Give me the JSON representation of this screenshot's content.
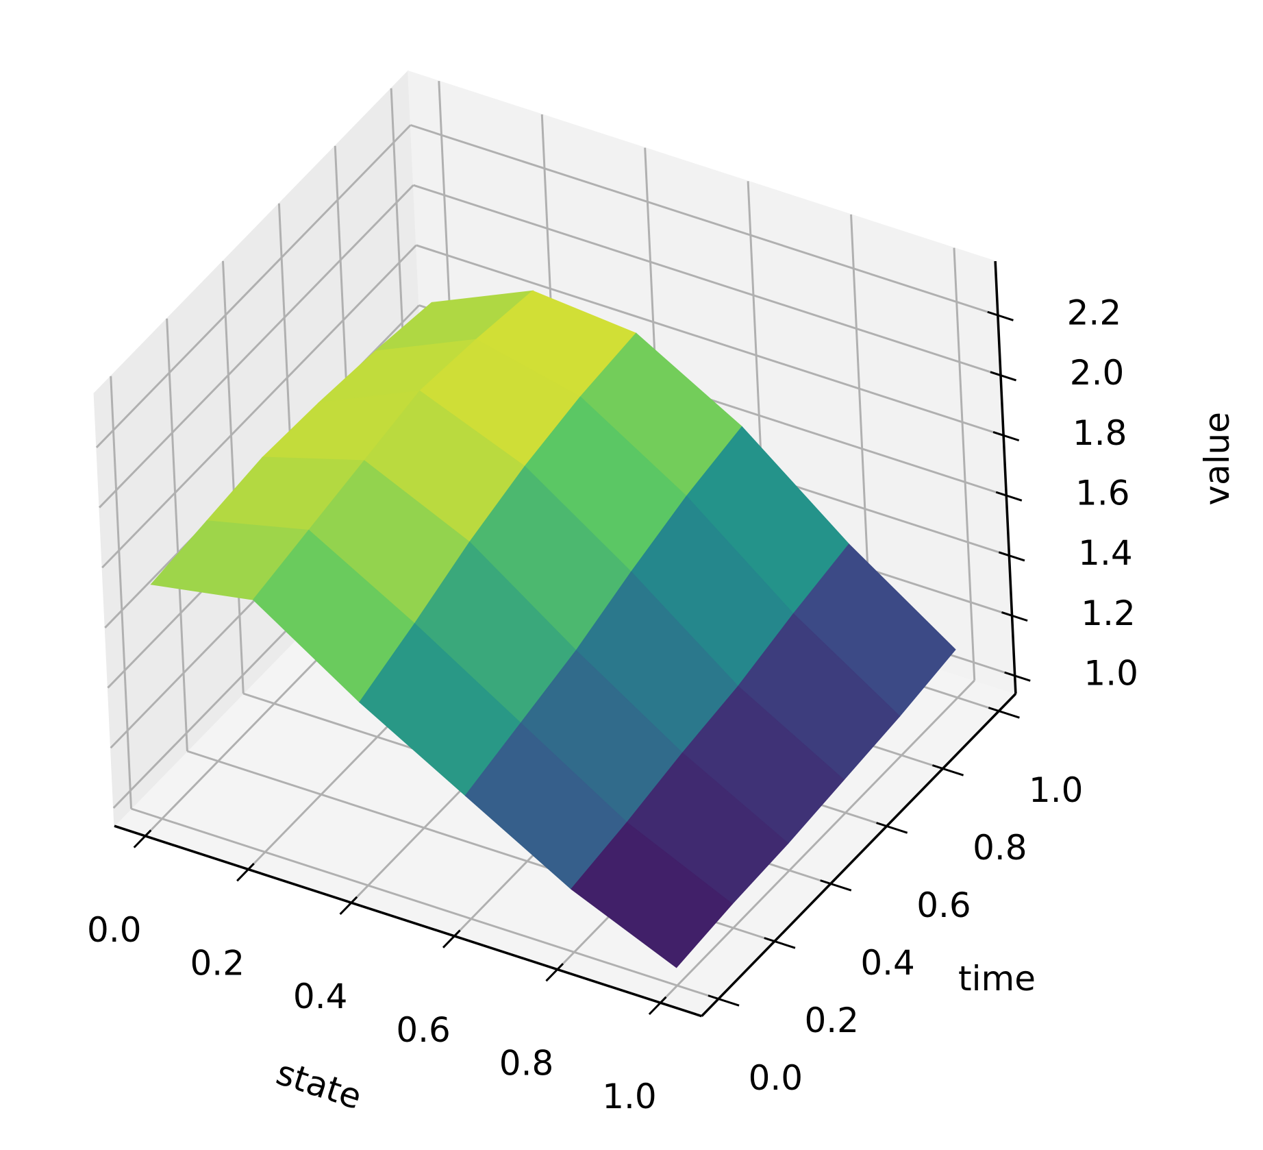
{
  "chart_data": {
    "type": "surface",
    "xlabel": "state",
    "ylabel": "time",
    "zlabel": "value",
    "cmap": "viridis",
    "grid": true,
    "x": [
      0,
      0.2,
      0.4,
      0.6,
      0.8,
      1
    ],
    "y": [
      0,
      0.2,
      0.4,
      0.6,
      0.8,
      1
    ],
    "z": [
      [
        1.72,
        1.78,
        1.55,
        1.35,
        1.15,
        1.0
      ],
      [
        1.74,
        1.82,
        1.62,
        1.4,
        1.18,
        1.02
      ],
      [
        1.76,
        1.86,
        1.7,
        1.45,
        1.22,
        1.03
      ],
      [
        1.75,
        1.9,
        1.76,
        1.52,
        1.25,
        1.05
      ],
      [
        1.73,
        1.88,
        1.8,
        1.58,
        1.3,
        1.07
      ],
      [
        1.7,
        1.85,
        1.82,
        1.62,
        1.34,
        1.1
      ]
    ],
    "xlim": [
      -0.06,
      1.08
    ],
    "ylim": [
      -0.06,
      1.06
    ],
    "zlim": [
      0.94,
      2.38
    ],
    "xticks": [
      {
        "value": 0,
        "label": "0.0"
      },
      0.2,
      0.4,
      0.6,
      0.8,
      {
        "value": 1,
        "label": "1.0"
      }
    ],
    "yticks": [
      {
        "value": 0,
        "label": "0.0"
      },
      0.2,
      0.4,
      0.6,
      0.8,
      {
        "value": 1,
        "label": "1.0"
      }
    ],
    "zticks": [
      {
        "value": 1,
        "label": "1.0"
      },
      1.2,
      1.4,
      1.6,
      1.8,
      {
        "value": 2,
        "label": "2.0"
      },
      2.2
    ]
  }
}
